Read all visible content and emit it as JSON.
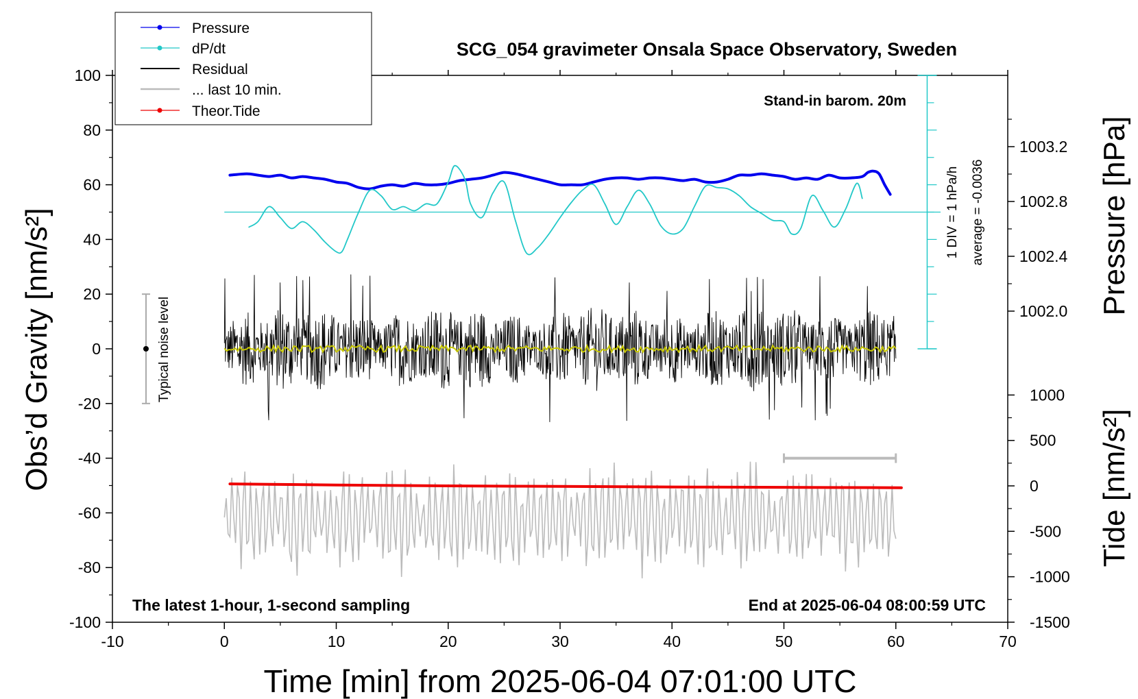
{
  "chart_data": {
    "type": "line",
    "title": "SCG_054 gravimeter Onsala Space Observatory, Sweden",
    "xlabel": "Time [min] from 2025-06-04 07:01:00 UTC",
    "ylabel_left": "Obs’d Gravity [nm/s²]",
    "ylabel_right_pressure": "Pressure [hPa]",
    "ylabel_right_tide": "Tide [nm/s²]",
    "xlim": [
      -10,
      70
    ],
    "ylim": [
      -100,
      100
    ],
    "x_ticks": [
      "-10",
      "0",
      "10",
      "20",
      "30",
      "40",
      "50",
      "60",
      "70"
    ],
    "y_ticks": [
      "100",
      "80",
      "60",
      "40",
      "20",
      "0",
      "-20",
      "-40",
      "-60",
      "-80",
      "-100"
    ],
    "pressure_axis": {
      "ticks": [
        "1003.2",
        "1002.8",
        "1002.4",
        "1002.0"
      ],
      "values": [
        1003.2,
        1002.8,
        1002.4,
        1002.0
      ],
      "ylim": [
        1001.6,
        1003.6
      ]
    },
    "tide_axis": {
      "ticks": [
        "1000",
        "500",
        "0",
        "-500",
        "-1000",
        "-1500"
      ],
      "values": [
        1000,
        500,
        0,
        -500,
        -1000,
        -1500
      ]
    },
    "annotations": {
      "barometer": "Stand-in barom. 20m",
      "dpdt_scale": "1 DIV = 1 hPa/h",
      "dpdt_average": "average = -0.0036",
      "noise_label": "Typical noise level",
      "bottom_left": "The latest 1-hour, 1-second sampling",
      "bottom_right": "End at 2025-06-04 08:00:59 UTC"
    },
    "legend": {
      "placement": "top-left",
      "entries": [
        "Pressure",
        "dP/dt",
        "Residual",
        "... last 10 min.",
        "Theor.Tide"
      ]
    },
    "series": [
      {
        "name": "Pressure",
        "color": "#0000ee",
        "x": [
          0.5,
          2,
          3,
          4,
          5,
          6,
          7,
          8,
          9,
          10,
          11,
          12,
          13,
          14,
          15,
          16,
          17,
          18,
          19,
          20,
          21,
          22,
          23,
          24,
          25,
          26,
          27,
          28,
          29,
          30,
          31,
          32,
          33,
          34,
          35,
          36,
          37,
          38,
          39,
          40,
          41,
          42,
          43,
          44,
          45,
          46,
          47,
          48,
          49,
          50,
          51,
          52,
          53,
          54,
          55,
          56,
          57,
          57.5,
          58,
          58.5,
          59,
          59.5
        ],
        "y": [
          63.5,
          64,
          63.5,
          63,
          63.5,
          62.5,
          63,
          62.5,
          62,
          61,
          60.5,
          59,
          58.5,
          59.5,
          60,
          59.5,
          60.5,
          60,
          60,
          60.5,
          61.5,
          62,
          62.5,
          63.5,
          64.5,
          64,
          63,
          62,
          61,
          60,
          60,
          60,
          61,
          62,
          62.5,
          62.5,
          62,
          62.5,
          62.5,
          62,
          61.5,
          62,
          61,
          61,
          62,
          63.5,
          63.5,
          64,
          63.5,
          63,
          62,
          62.5,
          62,
          63.5,
          62.5,
          62.5,
          63,
          64.5,
          65,
          64,
          60,
          56.5
        ]
      },
      {
        "name": "dP/dt",
        "color": "#22c8c8",
        "x": [
          2.2,
          3,
          4,
          5,
          6,
          7,
          8,
          9,
          10,
          10.5,
          11,
          12,
          13,
          14,
          15,
          16,
          17,
          18,
          19,
          20,
          20.6,
          21.5,
          22,
          23,
          24,
          25,
          26,
          27,
          28,
          29,
          30,
          31,
          32,
          33,
          34,
          35,
          36,
          37,
          38,
          39,
          40,
          41,
          42,
          43,
          44,
          45,
          46,
          47,
          48,
          49,
          50,
          50.7,
          51.5,
          52.5,
          53.5,
          54.5,
          55.5,
          56.5,
          57
        ],
        "y": [
          44.5,
          46.5,
          52,
          48,
          44,
          46.5,
          43.5,
          39,
          35.5,
          35.5,
          40,
          50,
          58,
          56,
          51,
          52,
          50.5,
          53,
          53,
          61,
          67,
          62,
          53,
          48,
          57,
          61,
          47,
          35,
          37,
          42,
          48,
          53.5,
          58,
          60,
          53,
          45.5,
          52,
          58,
          53,
          45,
          42,
          44,
          52,
          59.5,
          59,
          58.5,
          56,
          52,
          49.5,
          47,
          46.5,
          42,
          44,
          56,
          50.5,
          44.5,
          51,
          60.5,
          55
        ]
      },
      {
        "name": "Theor.Tide",
        "color": "#ee0000",
        "unit": "nm/s2",
        "x": [
          0.5,
          10,
          20,
          30,
          40,
          50,
          60.5
        ],
        "y": [
          22,
          10,
          0,
          -6,
          -12,
          -16,
          -20
        ]
      }
    ],
    "reference_line": {
      "name": "dP/dt zero",
      "color": "#22c8c8",
      "y": 50,
      "xlim": [
        0,
        64
      ]
    },
    "residual_band": {
      "name": "Residual",
      "x_range": [
        0,
        60
      ],
      "typical_amplitude": 12,
      "peak_amplitude": 28
    },
    "smoothed_residual": {
      "color": "#c8c800",
      "level": 0
    },
    "last_10_min": {
      "name": "... last 10 min.",
      "x_range": [
        50,
        60
      ],
      "level": -40,
      "color": "#bbbbbb"
    },
    "noise_bar": {
      "x": -7,
      "ylim": [
        -20,
        20
      ]
    }
  }
}
